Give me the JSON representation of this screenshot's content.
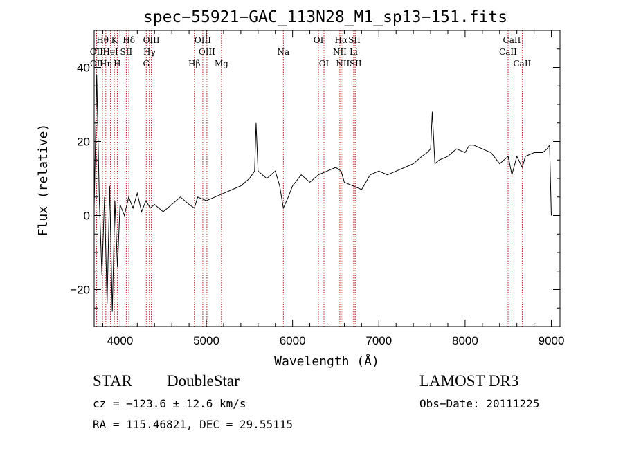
{
  "chart_data": {
    "type": "line",
    "title": "spec−55921−GAC_113N28_M1_sp13−151.fits",
    "xlabel": "Wavelength (Å)",
    "ylabel": "Flux (relative)",
    "xlim": [
      3700,
      9100
    ],
    "ylim": [
      -30,
      50
    ],
    "xticks": [
      4000,
      5000,
      6000,
      7000,
      8000,
      9000
    ],
    "xtick_labels": [
      "4000",
      "5000",
      "6000",
      "7000",
      "8000",
      "9000"
    ],
    "yticks": [
      -20,
      0,
      20,
      40
    ],
    "ytick_labels": [
      "−20",
      "0",
      "20",
      "40"
    ],
    "series": [
      {
        "name": "spectrum",
        "x": [
          3700,
          3730,
          3760,
          3790,
          3820,
          3850,
          3880,
          3910,
          3940,
          3970,
          4000,
          4050,
          4100,
          4150,
          4200,
          4250,
          4300,
          4350,
          4400,
          4500,
          4600,
          4700,
          4800,
          4861,
          4900,
          5000,
          5100,
          5200,
          5300,
          5400,
          5500,
          5560,
          5577,
          5600,
          5700,
          5800,
          5850,
          5893,
          5950,
          6000,
          6100,
          6200,
          6300,
          6400,
          6500,
          6563,
          6600,
          6700,
          6800,
          6900,
          7000,
          7100,
          7200,
          7300,
          7400,
          7500,
          7560,
          7600,
          7620,
          7650,
          7700,
          7800,
          7900,
          8000,
          8050,
          8100,
          8200,
          8300,
          8400,
          8500,
          8542,
          8600,
          8662,
          8700,
          8800,
          8900,
          8950,
          8980,
          9000
        ],
        "y": [
          2,
          38,
          4,
          -16,
          5,
          -24,
          8,
          -26,
          4,
          -14,
          3,
          0,
          5,
          2,
          6,
          1,
          4,
          2,
          3,
          1,
          3,
          5,
          3,
          2,
          5,
          4,
          5,
          6,
          7,
          8,
          10,
          12,
          25,
          12,
          10,
          12,
          8,
          2,
          5,
          8,
          11,
          9,
          11,
          12,
          13,
          12,
          9,
          8,
          7,
          11,
          12,
          11,
          12,
          13,
          14,
          16,
          17,
          18,
          28,
          14,
          15,
          16,
          18,
          17,
          19,
          19,
          18,
          17,
          14,
          16,
          11,
          16,
          13,
          16,
          17,
          17,
          18,
          19,
          0
        ]
      }
    ],
    "lines": [
      {
        "label": "Hθ",
        "wavelength": 3797,
        "row": 1
      },
      {
        "label": "K",
        "wavelength": 3934,
        "row": 1
      },
      {
        "label": "Hδ",
        "wavelength": 4102,
        "row": 1
      },
      {
        "label": "OIII",
        "wavelength": 4363,
        "row": 1
      },
      {
        "label": "OIII",
        "wavelength": 4959,
        "row": 1
      },
      {
        "label": "OI",
        "wavelength": 6300,
        "row": 1
      },
      {
        "label": "Hα",
        "wavelength": 6563,
        "row": 1
      },
      {
        "label": "SII",
        "wavelength": 6717,
        "row": 1
      },
      {
        "label": "CaII",
        "wavelength": 8542,
        "row": 1
      },
      {
        "label": "OII",
        "wavelength": 3727,
        "row": 2
      },
      {
        "label": "HeI",
        "wavelength": 3889,
        "row": 2
      },
      {
        "label": "SII",
        "wavelength": 4072,
        "row": 2
      },
      {
        "label": "Hγ",
        "wavelength": 4340,
        "row": 2
      },
      {
        "label": "OIII",
        "wavelength": 5007,
        "row": 2
      },
      {
        "label": "Na",
        "wavelength": 5893,
        "row": 2
      },
      {
        "label": "NII",
        "wavelength": 6548,
        "row": 2
      },
      {
        "label": "Li",
        "wavelength": 6708,
        "row": 2
      },
      {
        "label": "CaII",
        "wavelength": 8498,
        "row": 2
      },
      {
        "label": "OII",
        "wavelength": 3729,
        "row": 3
      },
      {
        "label": "Hη",
        "wavelength": 3835,
        "row": 3
      },
      {
        "label": "H",
        "wavelength": 3968,
        "row": 3
      },
      {
        "label": "G",
        "wavelength": 4304,
        "row": 3
      },
      {
        "label": "Hβ",
        "wavelength": 4861,
        "row": 3
      },
      {
        "label": "Mg",
        "wavelength": 5175,
        "row": 3
      },
      {
        "label": "OI",
        "wavelength": 6364,
        "row": 3
      },
      {
        "label": "NII",
        "wavelength": 6583,
        "row": 3
      },
      {
        "label": "SII",
        "wavelength": 6731,
        "row": 3
      },
      {
        "label": "CaII",
        "wavelength": 8662,
        "row": 3
      }
    ],
    "colors": {
      "spectrum": "#000000",
      "marker_line": "#b22222",
      "axes": "#000000"
    }
  },
  "info": {
    "class": "STAR",
    "subclass": "DoubleStar",
    "survey": "LAMOST DR3",
    "cz": "cz = −123.6 ± 12.6 km/s",
    "obs_date": "Obs−Date: 20111225",
    "radec": "RA = 115.46821, DEC =  29.55115"
  }
}
